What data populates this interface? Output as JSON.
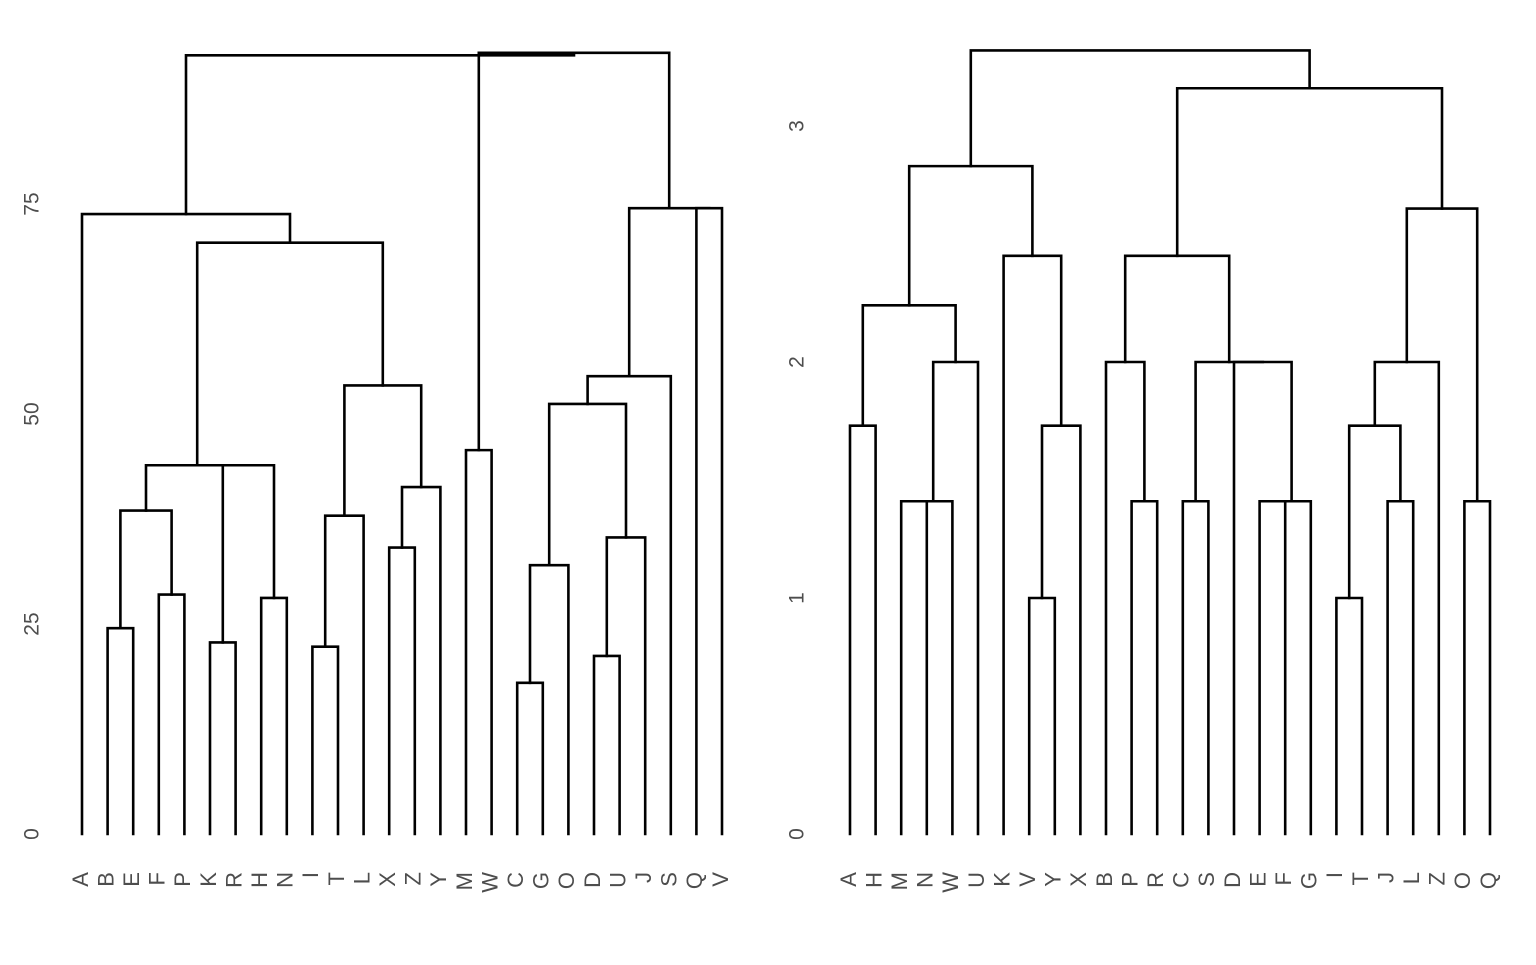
{
  "chart_data": [
    {
      "type": "dendrogram",
      "title": "",
      "xlabel": "",
      "ylabel": "",
      "ylim": [
        0,
        93
      ],
      "yticks": [
        0,
        25,
        50,
        75
      ],
      "leaves": [
        "A",
        "B",
        "E",
        "F",
        "P",
        "K",
        "R",
        "H",
        "N",
        "I",
        "T",
        "L",
        "X",
        "Z",
        "Y",
        "M",
        "W",
        "C",
        "G",
        "O",
        "D",
        "U",
        "J",
        "S",
        "Q",
        "V"
      ],
      "merges": [
        {
          "id": "BE",
          "children": [
            "B",
            "E"
          ],
          "height": 24.5
        },
        {
          "id": "FP",
          "children": [
            "F",
            "P"
          ],
          "height": 28.5
        },
        {
          "id": "BEFP",
          "children": [
            "BE",
            "FP"
          ],
          "height": 38.5
        },
        {
          "id": "KR",
          "children": [
            "K",
            "R"
          ],
          "height": 22.8
        },
        {
          "id": "HN",
          "children": [
            "H",
            "N"
          ],
          "height": 28.1
        },
        {
          "id": "KRHN",
          "children": [
            "KR",
            "HN"
          ],
          "height": 43.9
        },
        {
          "id": "g1",
          "children": [
            "BEFP",
            "KRHN"
          ],
          "height": 43.9
        },
        {
          "id": "IT",
          "children": [
            "I",
            "T"
          ],
          "height": 22.3
        },
        {
          "id": "ITL",
          "children": [
            "IT",
            "L"
          ],
          "height": 37.9
        },
        {
          "id": "XZ",
          "children": [
            "X",
            "Z"
          ],
          "height": 34.1
        },
        {
          "id": "XZY",
          "children": [
            "XZ",
            "Y"
          ],
          "height": 41.3
        },
        {
          "id": "g2",
          "children": [
            "ITL",
            "XZY"
          ],
          "height": 53.4
        },
        {
          "id": "g3",
          "children": [
            "g1",
            "g2"
          ],
          "height": 70.4
        },
        {
          "id": "g4",
          "children": [
            "A",
            "g3"
          ],
          "height": 73.8
        },
        {
          "id": "MW",
          "children": [
            "M",
            "W"
          ],
          "height": 45.7
        },
        {
          "id": "CG",
          "children": [
            "C",
            "G"
          ],
          "height": 18.0
        },
        {
          "id": "CGO",
          "children": [
            "CG",
            "O"
          ],
          "height": 32.0
        },
        {
          "id": "DU",
          "children": [
            "D",
            "U"
          ],
          "height": 21.2
        },
        {
          "id": "DUJ",
          "children": [
            "DU",
            "J"
          ],
          "height": 35.3
        },
        {
          "id": "g5",
          "children": [
            "CGO",
            "DUJ"
          ],
          "height": 51.2
        },
        {
          "id": "g6",
          "children": [
            "g5",
            "S"
          ],
          "height": 54.5
        },
        {
          "id": "QV",
          "children": [
            "Q",
            "V"
          ],
          "height": 74.5
        },
        {
          "id": "g7",
          "children": [
            "g6",
            "QV"
          ],
          "height": 74.5
        },
        {
          "id": "g8",
          "children": [
            "MW",
            "g7"
          ],
          "height": 93.0
        },
        {
          "id": "root",
          "children": [
            "g4",
            "g8"
          ],
          "height": 92.7
        }
      ]
    },
    {
      "type": "dendrogram",
      "title": "",
      "xlabel": "",
      "ylabel": "",
      "ylim": [
        0,
        3.32
      ],
      "yticks": [
        0,
        1,
        2,
        3
      ],
      "leaves": [
        "A",
        "H",
        "M",
        "N",
        "W",
        "U",
        "K",
        "V",
        "Y",
        "X",
        "B",
        "P",
        "R",
        "C",
        "S",
        "D",
        "E",
        "F",
        "G",
        "I",
        "T",
        "J",
        "L",
        "Z",
        "O",
        "Q"
      ],
      "merges": [
        {
          "id": "AH",
          "children": [
            "A",
            "H"
          ],
          "height": 1.73
        },
        {
          "id": "MN",
          "children": [
            "M",
            "N"
          ],
          "height": 1.41
        },
        {
          "id": "MNW",
          "children": [
            "MN",
            "W"
          ],
          "height": 1.41
        },
        {
          "id": "MNWU",
          "children": [
            "MNW",
            "U"
          ],
          "height": 2.0
        },
        {
          "id": "l1",
          "children": [
            "AH",
            "MNWU"
          ],
          "height": 2.24
        },
        {
          "id": "VY",
          "children": [
            "V",
            "Y"
          ],
          "height": 1.0
        },
        {
          "id": "VYX",
          "children": [
            "VY",
            "X"
          ],
          "height": 1.73
        },
        {
          "id": "l2",
          "children": [
            "K",
            "VYX"
          ],
          "height": 2.45
        },
        {
          "id": "l3",
          "children": [
            "l1",
            "l2"
          ],
          "height": 2.83
        },
        {
          "id": "PR",
          "children": [
            "P",
            "R"
          ],
          "height": 1.41
        },
        {
          "id": "BPR",
          "children": [
            "B",
            "PR"
          ],
          "height": 2.0
        },
        {
          "id": "CS",
          "children": [
            "C",
            "S"
          ],
          "height": 1.41
        },
        {
          "id": "EF",
          "children": [
            "E",
            "F"
          ],
          "height": 1.41
        },
        {
          "id": "EFG",
          "children": [
            "EF",
            "G"
          ],
          "height": 1.41
        },
        {
          "id": "DEFG",
          "children": [
            "D",
            "EFG"
          ],
          "height": 2.0
        },
        {
          "id": "r1",
          "children": [
            "CS",
            "DEFG"
          ],
          "height": 2.0
        },
        {
          "id": "r2",
          "children": [
            "BPR",
            "r1"
          ],
          "height": 2.45
        },
        {
          "id": "IT",
          "children": [
            "I",
            "T"
          ],
          "height": 1.0
        },
        {
          "id": "JL",
          "children": [
            "J",
            "L"
          ],
          "height": 1.41
        },
        {
          "id": "ITJL",
          "children": [
            "IT",
            "JL"
          ],
          "height": 1.73
        },
        {
          "id": "r3",
          "children": [
            "ITJL",
            "Z"
          ],
          "height": 2.0
        },
        {
          "id": "OQ",
          "children": [
            "O",
            "Q"
          ],
          "height": 1.41
        },
        {
          "id": "r4",
          "children": [
            "r3",
            "OQ"
          ],
          "height": 2.65
        },
        {
          "id": "r5",
          "children": [
            "r2",
            "r4"
          ],
          "height": 3.16
        },
        {
          "id": "root",
          "children": [
            "l3",
            "r5"
          ],
          "height": 3.32
        }
      ]
    }
  ]
}
